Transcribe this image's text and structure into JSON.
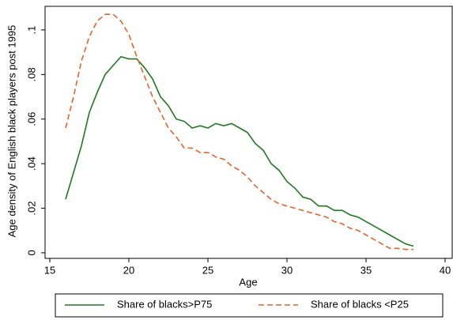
{
  "chart_data": {
    "type": "line",
    "x_label": "Age",
    "y_label": "Age density of English black players post 1995",
    "x": [
      16,
      16.5,
      17,
      17.5,
      18,
      18.5,
      19,
      19.5,
      20,
      20.5,
      21,
      21.5,
      22,
      22.5,
      23,
      23.5,
      24,
      24.5,
      25,
      25.5,
      26,
      26.5,
      27,
      27.5,
      28,
      28.5,
      29,
      29.5,
      30,
      30.5,
      31,
      31.5,
      32,
      32.5,
      33,
      33.5,
      34,
      34.5,
      35,
      35.5,
      36,
      36.5,
      37,
      37.5,
      38
    ],
    "series": [
      {
        "name": "Share of blacks>P75",
        "color": "#1f7a1f",
        "linestyle": "solid",
        "values": [
          0.024,
          0.036,
          0.048,
          0.063,
          0.072,
          0.08,
          0.084,
          0.088,
          0.087,
          0.087,
          0.083,
          0.078,
          0.07,
          0.066,
          0.06,
          0.059,
          0.056,
          0.057,
          0.056,
          0.058,
          0.057,
          0.058,
          0.056,
          0.054,
          0.049,
          0.046,
          0.04,
          0.037,
          0.032,
          0.029,
          0.025,
          0.024,
          0.021,
          0.021,
          0.019,
          0.019,
          0.017,
          0.016,
          0.014,
          0.012,
          0.01,
          0.008,
          0.006,
          0.004,
          0.003
        ]
      },
      {
        "name": "Share of blacks <P25",
        "color": "#e8622a",
        "linestyle": "dashed",
        "values": [
          0.056,
          0.07,
          0.086,
          0.097,
          0.104,
          0.107,
          0.107,
          0.104,
          0.098,
          0.088,
          0.079,
          0.07,
          0.063,
          0.056,
          0.052,
          0.047,
          0.047,
          0.045,
          0.045,
          0.043,
          0.042,
          0.039,
          0.037,
          0.034,
          0.03,
          0.027,
          0.024,
          0.022,
          0.021,
          0.02,
          0.019,
          0.018,
          0.017,
          0.016,
          0.014,
          0.013,
          0.011,
          0.01,
          0.008,
          0.006,
          0.004,
          0.002,
          0.002,
          0.0015,
          0.0015
        ]
      }
    ],
    "xlim": [
      14.7,
      40.45
    ],
    "ylim": [
      -0.0025,
      0.1106
    ],
    "xticks": [
      15,
      20,
      25,
      30,
      35,
      40
    ],
    "yticks": [
      0,
      {
        "value": 0.02,
        "label": ".02"
      },
      {
        "value": 0.04,
        "label": ".04"
      },
      {
        "value": 0.06,
        "label": ".06"
      },
      {
        "value": 0.08,
        "label": ".08"
      },
      {
        "value": 0.1,
        "label": ".1"
      }
    ],
    "grid": false,
    "legend": "bottom"
  }
}
